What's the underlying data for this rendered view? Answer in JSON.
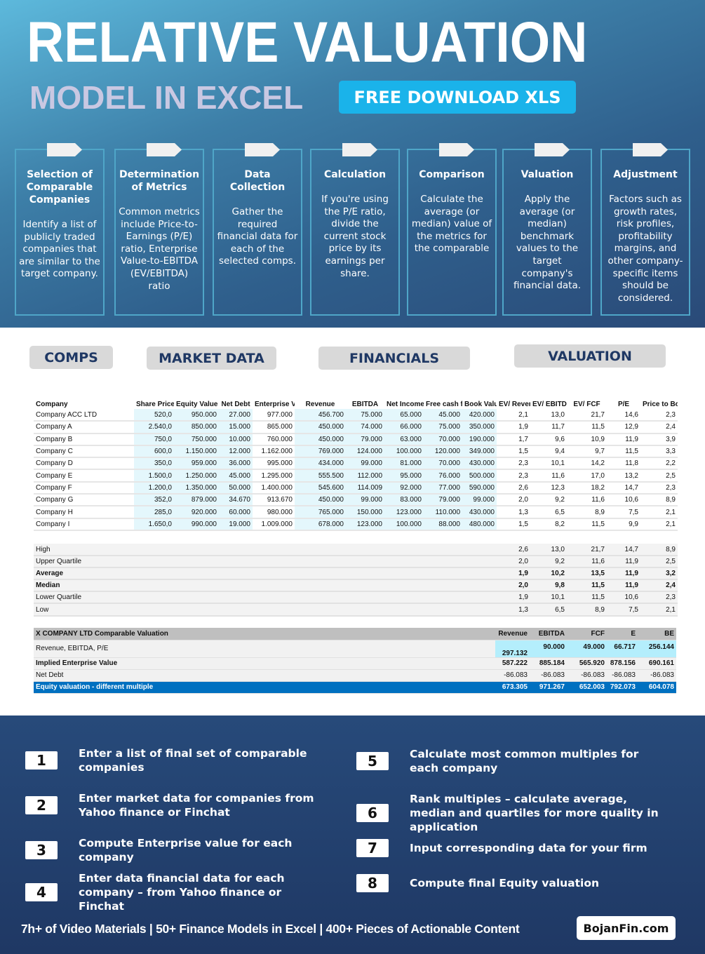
{
  "hero": {
    "title": "RELATIVE VALUATION",
    "subtitle": "MODEL IN EXCEL",
    "download_label": "FREE DOWNLOAD XLS"
  },
  "cards": [
    {
      "title": "Selection of Comparable Companies",
      "text": "Identify a list of publicly traded companies that are similar to the target company."
    },
    {
      "title": "Determination of Metrics",
      "text": "Common metrics include Price-to-Earnings (P/E) ratio, Enterprise Value-to-EBITDA (EV/EBITDA) ratio"
    },
    {
      "title": "Data Collection",
      "text": "Gather the required financial data for each of the selected comps."
    },
    {
      "title": "Calculation",
      "text": "If you're using the P/E ratio, divide the current stock price by its earnings per share."
    },
    {
      "title": "Comparison",
      "text": "Calculate the average (or median) value of the metrics for the comparable"
    },
    {
      "title": "Valuation",
      "text": "Apply the average (or median) benchmark values to the target company's financial data."
    },
    {
      "title": "Adjustment",
      "text": "Factors such as growth rates, risk profiles, profitability margins, and other company-specific items should be considered."
    }
  ],
  "sections": {
    "comps": "COMPS",
    "market": "MARKET DATA",
    "financials": "FINANCIALS",
    "valuation": "VALUATION"
  },
  "comps_table": {
    "headers": [
      "Company",
      "Share Price",
      "Equity Value (Fair Market Value)",
      "Net Debt",
      "Enterprise Value",
      "Revenue",
      "EBITDA",
      "Net Income",
      "Free cash flow",
      "Book Value of Equity",
      "EV/ Revenue",
      "EV/ EBITDA",
      "EV/ FCF",
      "P/E",
      "Price to Book"
    ],
    "rows": [
      [
        "Company ACC LTD",
        "520,0",
        "950.000",
        "27.000",
        "977.000",
        "456.700",
        "75.000",
        "65.000",
        "45.000",
        "420.000",
        "2,1",
        "13,0",
        "21,7",
        "14,6",
        "2,3"
      ],
      [
        "Company A",
        "2.540,0",
        "850.000",
        "15.000",
        "865.000",
        "450.000",
        "74.000",
        "66.000",
        "75.000",
        "350.000",
        "1,9",
        "11,7",
        "11,5",
        "12,9",
        "2,4"
      ],
      [
        "Company B",
        "750,0",
        "750.000",
        "10.000",
        "760.000",
        "450.000",
        "79.000",
        "63.000",
        "70.000",
        "190.000",
        "1,7",
        "9,6",
        "10,9",
        "11,9",
        "3,9"
      ],
      [
        "Company C",
        "600,0",
        "1.150.000",
        "12.000",
        "1.162.000",
        "769.000",
        "124.000",
        "100.000",
        "120.000",
        "349.000",
        "1,5",
        "9,4",
        "9,7",
        "11,5",
        "3,3"
      ],
      [
        "Company D",
        "350,0",
        "959.000",
        "36.000",
        "995.000",
        "434.000",
        "99.000",
        "81.000",
        "70.000",
        "430.000",
        "2,3",
        "10,1",
        "14,2",
        "11,8",
        "2,2"
      ],
      [
        "Company E",
        "1.500,0",
        "1.250.000",
        "45.000",
        "1.295.000",
        "555.500",
        "112.000",
        "95.000",
        "76.000",
        "500.000",
        "2,3",
        "11,6",
        "17,0",
        "13,2",
        "2,5"
      ],
      [
        "Company F",
        "1.200,0",
        "1.350.000",
        "50.000",
        "1.400.000",
        "545.600",
        "114.009",
        "92.000",
        "77.000",
        "590.000",
        "2,6",
        "12,3",
        "18,2",
        "14,7",
        "2,3"
      ],
      [
        "Company G",
        "352,0",
        "879.000",
        "34.670",
        "913.670",
        "450.000",
        "99.000",
        "83.000",
        "79.000",
        "99.000",
        "2,0",
        "9,2",
        "11,6",
        "10,6",
        "8,9"
      ],
      [
        "Company H",
        "285,0",
        "920.000",
        "60.000",
        "980.000",
        "765.000",
        "150.000",
        "123.000",
        "110.000",
        "430.000",
        "1,3",
        "6,5",
        "8,9",
        "7,5",
        "2,1"
      ],
      [
        "Company I",
        "1.650,0",
        "990.000",
        "19.000",
        "1.009.000",
        "678.000",
        "123.000",
        "100.000",
        "88.000",
        "480.000",
        "1,5",
        "8,2",
        "11,5",
        "9,9",
        "2,1"
      ]
    ]
  },
  "stats": [
    {
      "label": "High",
      "bold": false,
      "values": [
        "2,6",
        "13,0",
        "21,7",
        "14,7",
        "8,9"
      ]
    },
    {
      "label": "Upper Quartile",
      "bold": false,
      "values": [
        "2,0",
        "9,2",
        "11,6",
        "11,9",
        "2,5"
      ]
    },
    {
      "label": "Average",
      "bold": true,
      "values": [
        "1,9",
        "10,2",
        "13,5",
        "11,9",
        "3,2"
      ]
    },
    {
      "label": "Median",
      "bold": true,
      "values": [
        "2,0",
        "9,8",
        "11,5",
        "11,9",
        "2,4"
      ]
    },
    {
      "label": "Lower Quartile",
      "bold": false,
      "values": [
        "1,9",
        "10,1",
        "11,5",
        "10,6",
        "2,3"
      ]
    },
    {
      "label": "Low",
      "bold": false,
      "values": [
        "1,3",
        "6,5",
        "8,9",
        "7,5",
        "2,1"
      ]
    }
  ],
  "valuation": {
    "title": "X COMPANY LTD Comparable Valuation",
    "headers": [
      "Revenue",
      "EBITDA",
      "FCF",
      "E",
      "BE"
    ],
    "rows": [
      {
        "label": "Revenue, EBITDA, P/E",
        "type": "in",
        "values": [
          "297.132",
          "90.000",
          "49.000",
          "66.717",
          "256.144"
        ]
      },
      {
        "label": "Implied Enterprise Value",
        "type": "b",
        "values": [
          "587.222",
          "885.184",
          "565.920",
          "878.156",
          "690.161"
        ]
      },
      {
        "label": "Net Debt",
        "type": "",
        "values": [
          "-86.083",
          "-86.083",
          "-86.083",
          "-86.083",
          "-86.083"
        ]
      },
      {
        "label": "Equity valuation - different multiple",
        "type": "eq",
        "values": [
          "673.305",
          "971.267",
          "652.003",
          "792.073",
          "604.078"
        ]
      }
    ]
  },
  "steps": [
    {
      "num": "1",
      "text": "Enter a list of final set of comparable companies"
    },
    {
      "num": "2",
      "text": "Enter market data for companies from Yahoo finance or Finchat"
    },
    {
      "num": "3",
      "text": "Compute Enterprise value for each company"
    },
    {
      "num": "4",
      "text": "Enter data financial data for each company – from Yahoo finance or Finchat"
    },
    {
      "num": "5",
      "text": "Calculate most common multiples for each company"
    },
    {
      "num": "6",
      "text": "Rank multiples – calculate average, median and quartiles for more quality in application"
    },
    {
      "num": "7",
      "text": "Input corresponding data for your firm"
    },
    {
      "num": "8",
      "text": "Compute final Equity valuation"
    }
  ],
  "footer": {
    "text": "7h+ of Video Materials | 50+ Finance Models in Excel | 400+ Pieces of Actionable Content",
    "brand": "BojanFin.com"
  }
}
